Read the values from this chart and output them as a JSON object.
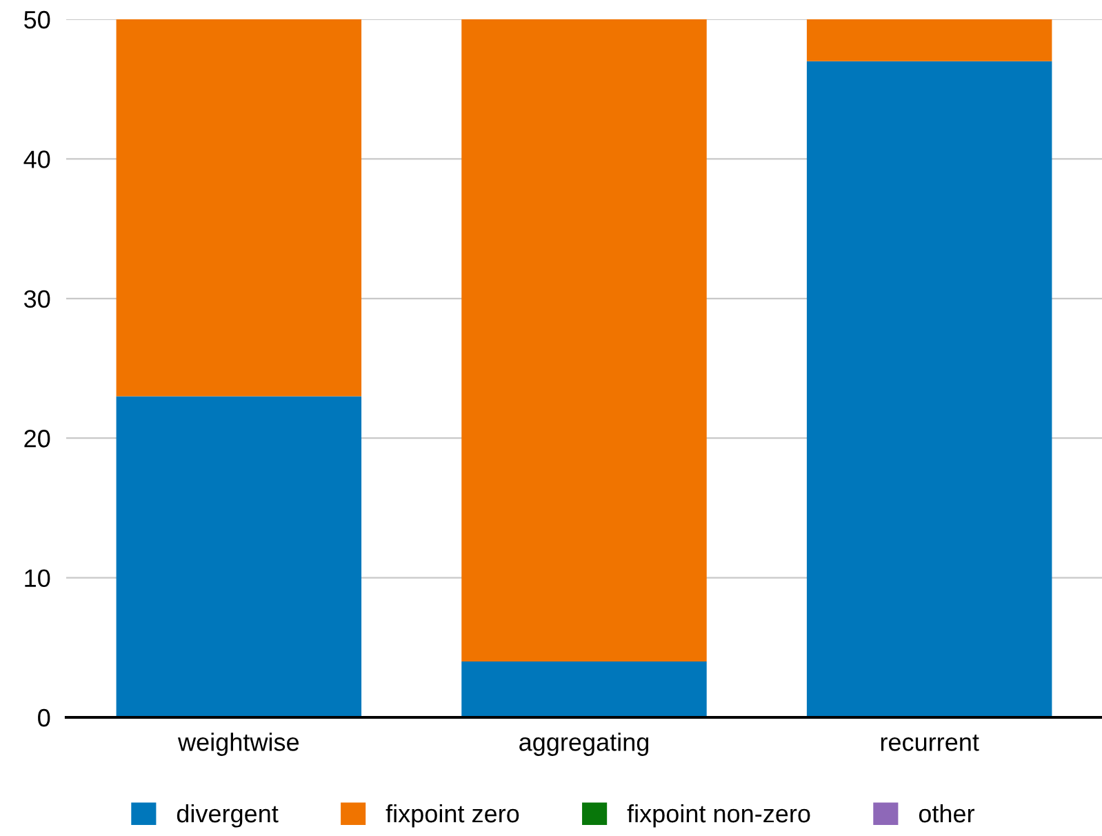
{
  "chart_data": {
    "type": "bar",
    "stacked": true,
    "categories": [
      "weightwise",
      "aggregating",
      "recurrent"
    ],
    "series": [
      {
        "name": "divergent",
        "color": "#0077bb",
        "values": [
          23,
          4,
          47
        ]
      },
      {
        "name": "fixpoint zero",
        "color": "#f07400",
        "values": [
          27,
          46,
          3
        ]
      },
      {
        "name": "fixpoint non-zero",
        "color": "#08770a",
        "values": [
          0,
          0,
          0
        ]
      },
      {
        "name": "other",
        "color": "#8e68b8",
        "values": [
          0,
          0,
          0
        ]
      }
    ],
    "ylim": [
      0,
      50
    ],
    "yticks": [
      0,
      10,
      20,
      30,
      40,
      50
    ],
    "grid": "y",
    "legend": "bottom"
  }
}
